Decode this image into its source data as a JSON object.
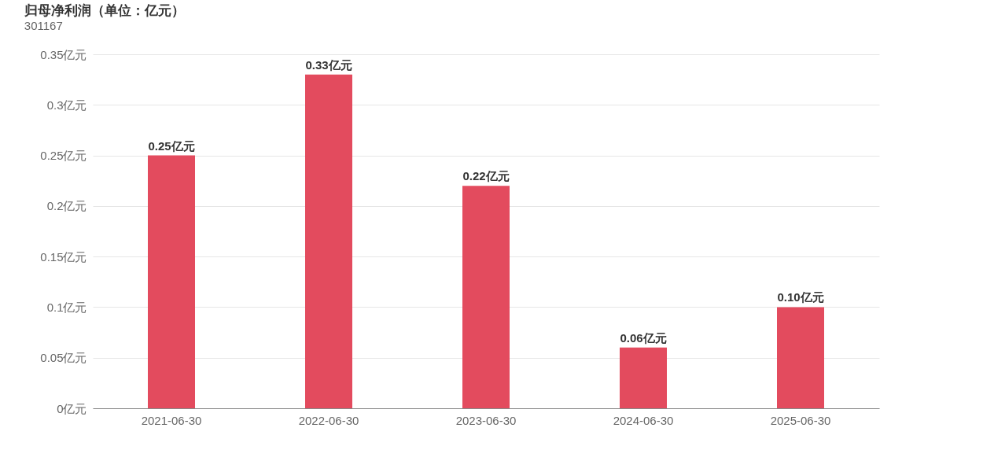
{
  "chart_data": {
    "type": "bar",
    "title": "归母净利润（单位：亿元）",
    "subtitle": "301167",
    "categories": [
      "2021-06-30",
      "2022-06-30",
      "2023-06-30",
      "2024-06-30",
      "2025-06-30"
    ],
    "values": [
      0.25,
      0.33,
      0.22,
      0.06,
      0.1
    ],
    "value_labels": [
      "0.25亿元",
      "0.33亿元",
      "0.22亿元",
      "0.06亿元",
      "0.10亿元"
    ],
    "color": "#e34b5e",
    "ylim": [
      0,
      0.35
    ],
    "yticks": [
      {
        "value": 0,
        "label": "0亿元"
      },
      {
        "value": 0.05,
        "label": "0.05亿元"
      },
      {
        "value": 0.1,
        "label": "0.1亿元"
      },
      {
        "value": 0.15,
        "label": "0.15亿元"
      },
      {
        "value": 0.2,
        "label": "0.2亿元"
      },
      {
        "value": 0.25,
        "label": "0.25亿元"
      },
      {
        "value": 0.3,
        "label": "0.3亿元"
      },
      {
        "value": 0.35,
        "label": "0.35亿元"
      }
    ],
    "grid": "y"
  }
}
